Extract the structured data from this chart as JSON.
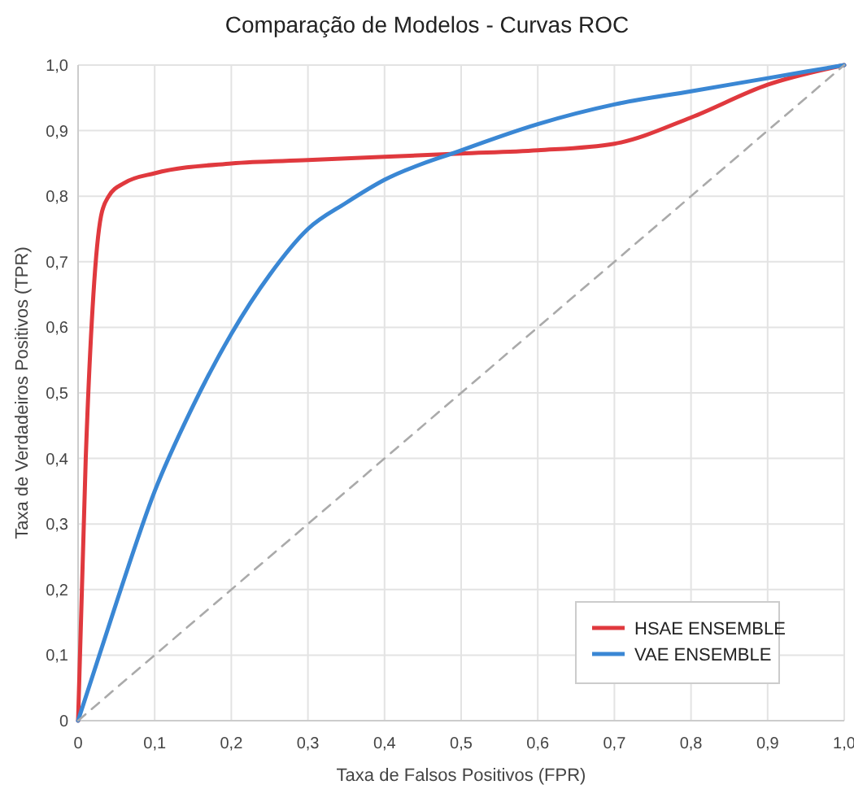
{
  "chart_data": {
    "type": "line",
    "title": "Comparação de Modelos - Curvas ROC",
    "xlabel": "Taxa de Falsos Positivos (FPR)",
    "ylabel": "Taxa de Verdadeiros Positivos (TPR)",
    "xlim": [
      0,
      1
    ],
    "ylim": [
      0,
      1
    ],
    "xticks": [
      0,
      {
        "value": 0.1,
        "label": "0,1"
      },
      {
        "value": 0.2,
        "label": "0,2"
      },
      {
        "value": 0.3,
        "label": "0,3"
      },
      {
        "value": 0.4,
        "label": "0,4"
      },
      {
        "value": 0.5,
        "label": "0,5"
      },
      {
        "value": 0.6,
        "label": "0,6"
      },
      {
        "value": 0.7,
        "label": "0,7"
      },
      {
        "value": 0.8,
        "label": "0,8"
      },
      {
        "value": 0.9,
        "label": "0,9"
      },
      {
        "value": 1,
        "label": "1,0"
      }
    ],
    "yticks": [
      0,
      {
        "value": 0.1,
        "label": "0,1"
      },
      {
        "value": 0.2,
        "label": "0,2"
      },
      {
        "value": 0.3,
        "label": "0,3"
      },
      {
        "value": 0.4,
        "label": "0,4"
      },
      {
        "value": 0.5,
        "label": "0,5"
      },
      {
        "value": 0.6,
        "label": "0,6"
      },
      {
        "value": 0.7,
        "label": "0,7"
      },
      {
        "value": 0.8,
        "label": "0,8"
      },
      {
        "value": 0.9,
        "label": "0,9"
      },
      {
        "value": 1,
        "label": "1,0"
      }
    ],
    "grid": true,
    "legend": "bottom right",
    "marker": "none",
    "series": [
      {
        "name": "HSAE ENSEMBLE",
        "color": "#e0393e",
        "line_style": "solid",
        "x": [
          0,
          0.01,
          0.02,
          0.03,
          0.04,
          0.06,
          0.1,
          0.2,
          0.3,
          0.4,
          0.5,
          0.6,
          0.7,
          0.8,
          0.9,
          1
        ],
        "values": [
          0,
          0.4,
          0.65,
          0.77,
          0.8,
          0.82,
          0.835,
          0.85,
          0.855,
          0.86,
          0.865,
          0.87,
          0.88,
          0.92,
          0.97,
          1
        ]
      },
      {
        "name": "VAE ENSEMBLE",
        "color": "#3a87d4",
        "line_style": "solid",
        "x": [
          0,
          0.05,
          0.1,
          0.15,
          0.2,
          0.25,
          0.3,
          0.35,
          0.4,
          0.5,
          0.6,
          0.7,
          0.8,
          0.9,
          1
        ],
        "values": [
          0,
          0.18,
          0.35,
          0.48,
          0.59,
          0.68,
          0.75,
          0.79,
          0.825,
          0.87,
          0.91,
          0.94,
          0.96,
          0.98,
          1
        ]
      },
      {
        "color": "#aaaaaa",
        "line_style": "dashed",
        "x": [
          0,
          1
        ],
        "values": [
          0,
          1
        ]
      }
    ]
  }
}
